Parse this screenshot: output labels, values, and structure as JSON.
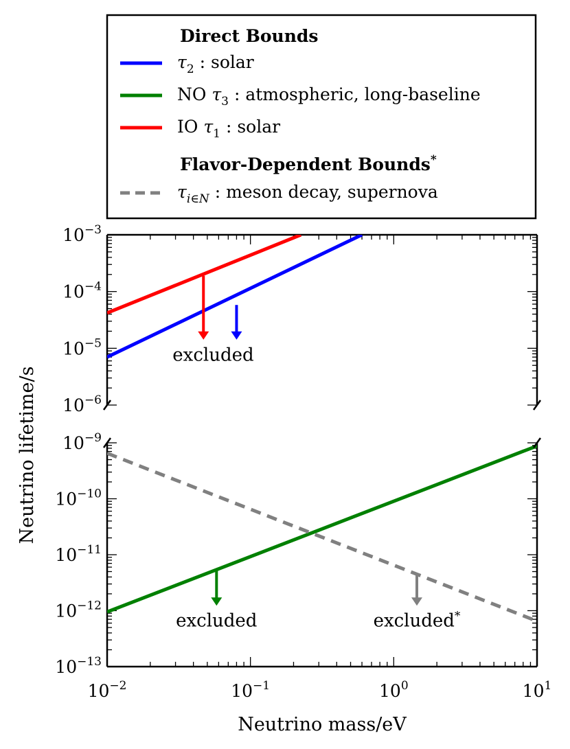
{
  "chart_data": {
    "type": "line",
    "xlabel": "Neutrino mass/eV",
    "ylabel": "Neutrino lifetime/s",
    "xscale": "log",
    "xlim": [
      0.01,
      10
    ],
    "x_ticks": [
      {
        "base": "10",
        "exp": "−2",
        "value": 0.01
      },
      {
        "base": "10",
        "exp": "−1",
        "value": 0.1
      },
      {
        "base": "10",
        "exp": "0",
        "value": 1
      },
      {
        "base": "10",
        "exp": "1",
        "value": 10
      }
    ],
    "panels": [
      {
        "name": "upper",
        "yscale": "log",
        "ylim": [
          1e-06,
          0.001
        ],
        "y_ticks": [
          {
            "base": "10",
            "exp": "−6",
            "value": 1e-06
          },
          {
            "base": "10",
            "exp": "−5",
            "value": 1e-05
          },
          {
            "base": "10",
            "exp": "−4",
            "value": 0.0001
          },
          {
            "base": "10",
            "exp": "−3",
            "value": 0.001
          }
        ],
        "series": [
          {
            "name": "τ2 : solar",
            "color": "#0000ff",
            "style": "solid",
            "x": [
              0.01,
              0.6
            ],
            "y": [
              7e-06,
              0.001
            ]
          },
          {
            "name": "IO τ1 : solar",
            "color": "#ff0000",
            "style": "solid",
            "x": [
              0.01,
              0.225
            ],
            "y": [
              4.2e-05,
              0.001
            ]
          }
        ],
        "arrows": [
          {
            "color": "#ff0000",
            "x": 0.047,
            "y_from": 0.00019,
            "y_to": 1.5e-05
          },
          {
            "color": "#0000ff",
            "x": 0.08,
            "y_from": 5.8e-05,
            "y_to": 1.5e-05
          }
        ],
        "annotations": [
          {
            "text": "excluded",
            "x": 0.055,
            "y": 7.5e-06
          }
        ]
      },
      {
        "name": "lower",
        "yscale": "log",
        "ylim": [
          1e-13,
          1e-09
        ],
        "y_ticks": [
          {
            "base": "10",
            "exp": "−13",
            "value": 1e-13
          },
          {
            "base": "10",
            "exp": "−12",
            "value": 1e-12
          },
          {
            "base": "10",
            "exp": "−11",
            "value": 1e-11
          },
          {
            "base": "10",
            "exp": "−10",
            "value": 1e-10
          },
          {
            "base": "10",
            "exp": "−9",
            "value": 1e-09
          }
        ],
        "series": [
          {
            "name": "NO τ3 : atmospheric, long-baseline",
            "color": "#008000",
            "style": "solid",
            "x": [
              0.01,
              10
            ],
            "y": [
              9.5e-13,
              8.8e-10
            ]
          },
          {
            "name": "τi∈N : meson decay, supernova",
            "color": "#808080",
            "style": "dashed",
            "x": [
              0.01,
              10
            ],
            "y": [
              6.5e-10,
              6.5e-13
            ]
          }
        ],
        "arrows": [
          {
            "color": "#008000",
            "x": 0.058,
            "y_from": 5.2e-12,
            "y_to": 1.3e-12
          },
          {
            "color": "#808080",
            "x": 1.45,
            "y_from": 4.5e-12,
            "y_to": 1.3e-12
          }
        ],
        "annotations": [
          {
            "text": "excluded",
            "x": 0.058,
            "y": 6.5e-13
          },
          {
            "text": "excluded",
            "sup": "*",
            "x": 1.45,
            "y": 6.5e-13
          }
        ]
      }
    ],
    "legend": {
      "placement": "top",
      "heading_direct": "Direct Bounds",
      "heading_flavor": "Flavor-Dependent Bounds",
      "heading_flavor_sup": "*",
      "entries": [
        {
          "color": "#0000ff",
          "style": "solid",
          "prefix": "",
          "sym": "τ",
          "sub": "2",
          "desc": " : solar"
        },
        {
          "color": "#008000",
          "style": "solid",
          "prefix": "NO ",
          "sym": "τ",
          "sub": "3",
          "desc": " : atmospheric, long-baseline"
        },
        {
          "color": "#ff0000",
          "style": "solid",
          "prefix": "IO ",
          "sym": "τ",
          "sub": "1",
          "desc": " : solar"
        },
        {
          "color": "#808080",
          "style": "dashed",
          "prefix": "",
          "sym": "τ",
          "sub": "i∈N",
          "desc": " : meson decay, supernova"
        }
      ]
    }
  }
}
